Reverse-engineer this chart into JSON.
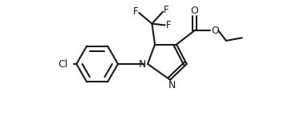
{
  "bg_color": "#ffffff",
  "line_color": "#1a1a1a",
  "line_width": 1.5,
  "font_size": 8.5,
  "figsize": [
    3.79,
    1.6
  ],
  "dpi": 100,
  "xlim": [
    0,
    10.5
  ],
  "ylim": [
    0,
    4.4
  ]
}
